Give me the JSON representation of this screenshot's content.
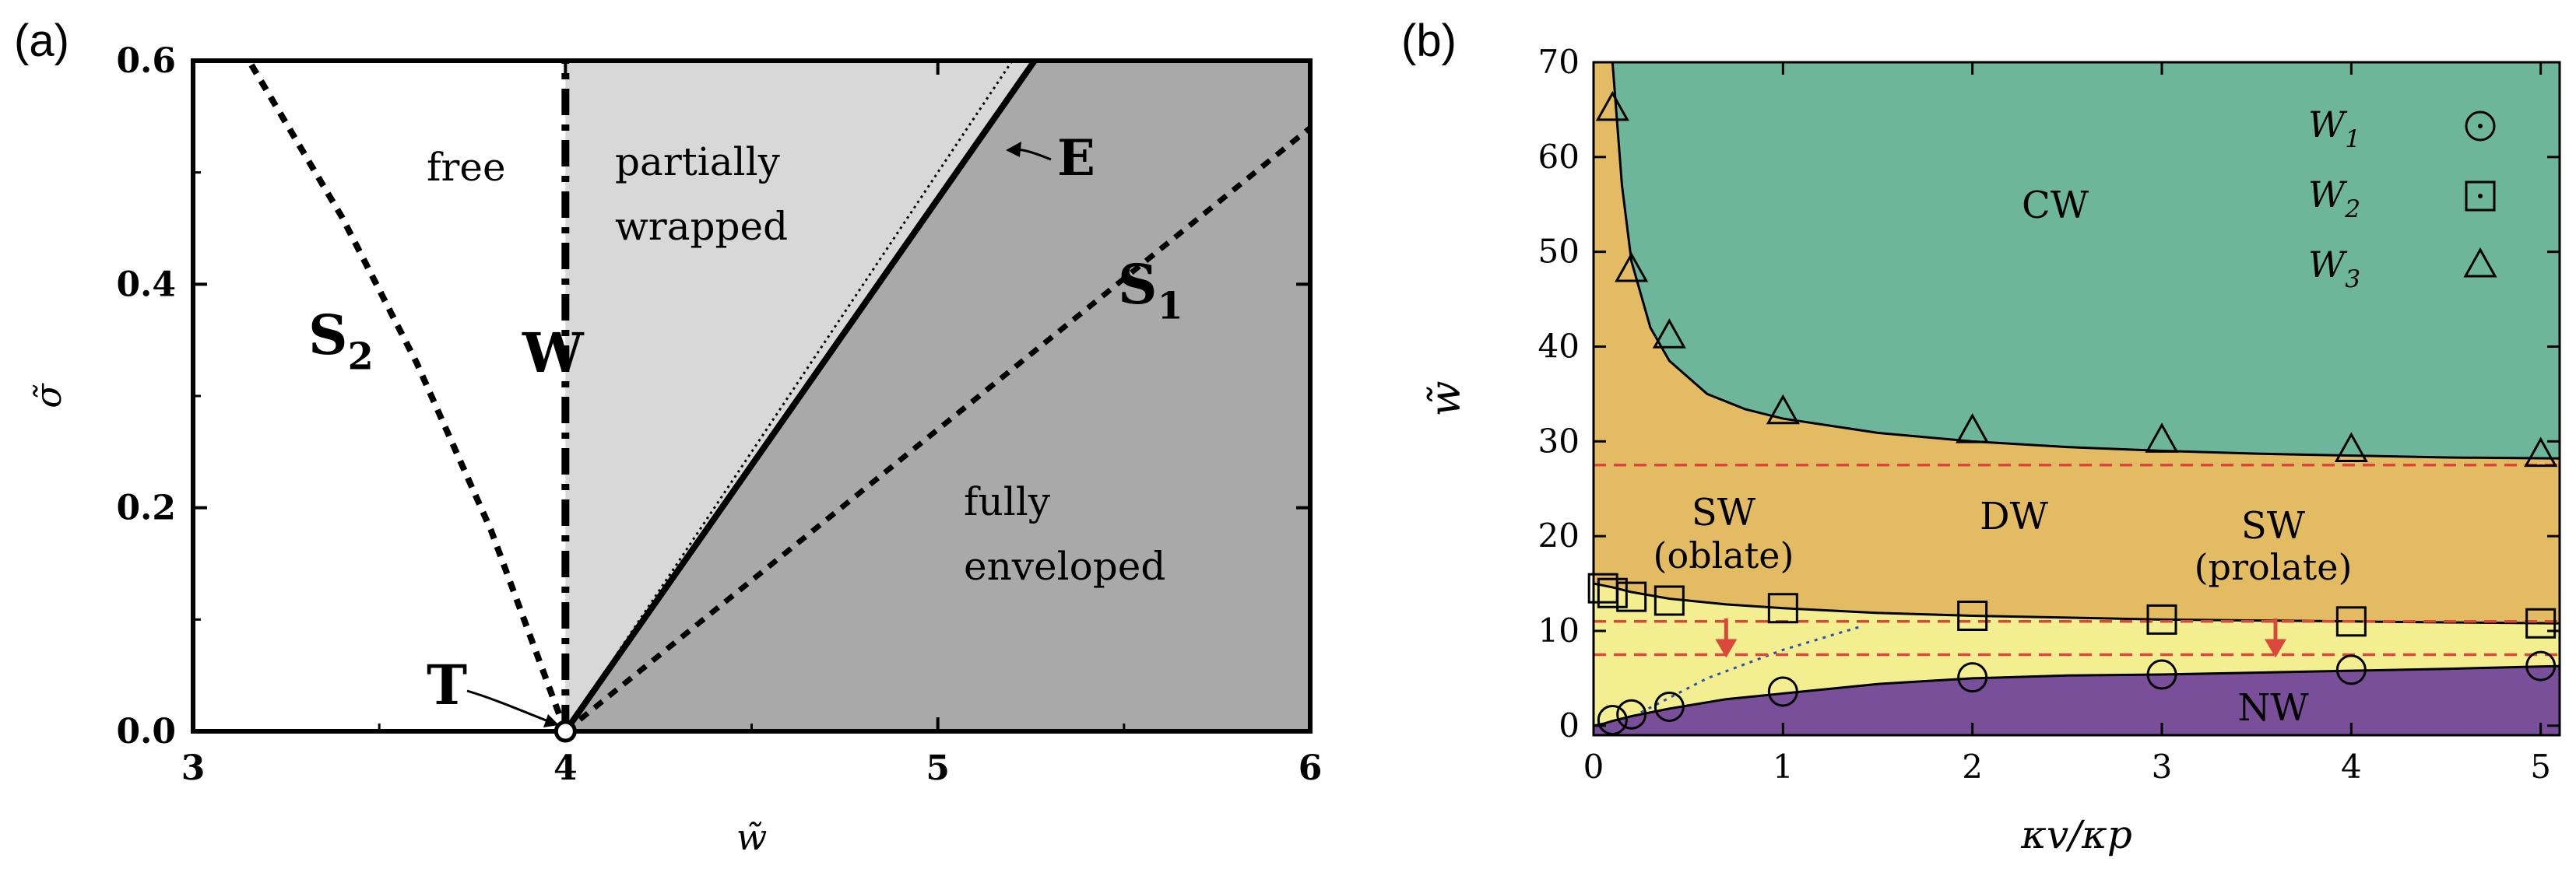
{
  "panels": {
    "a": {
      "label": "(a)"
    },
    "b": {
      "label": "(b)"
    }
  },
  "chart_data": [
    {
      "id": "a",
      "type": "area",
      "xlabel": "w̃",
      "ylabel": "σ̃",
      "xlim": [
        3,
        6
      ],
      "ylim": [
        0,
        0.6
      ],
      "xticks": [
        3,
        4,
        5,
        6
      ],
      "yticks": [
        0.0,
        0.2,
        0.4,
        0.6
      ],
      "grid": false,
      "colors": {
        "partially_wrapped": "#d8d8d8",
        "fully_enveloped": "#a9a9a9",
        "free": "#ffffff"
      },
      "regions": [
        {
          "key": "free",
          "lines": [
            "free"
          ]
        },
        {
          "key": "partially_wrapped",
          "lines": [
            "partially",
            "wrapped"
          ]
        },
        {
          "key": "fully_enveloped",
          "lines": [
            "fully",
            "enveloped"
          ]
        }
      ],
      "boundaries": {
        "W": {
          "label": "W",
          "style": "dash-dot",
          "x": [
            4,
            4
          ],
          "y": [
            0,
            0.6
          ]
        },
        "E": {
          "label": "E",
          "style": "solid",
          "x": [
            4,
            5.26
          ],
          "y": [
            0,
            0.6
          ]
        },
        "E_approx": {
          "style": "dotted",
          "x": [
            4,
            5.2
          ],
          "y": [
            0,
            0.6
          ]
        },
        "S1": {
          "label": "S",
          "sub": "1",
          "style": "dashed",
          "x": [
            4,
            6
          ],
          "y": [
            0,
            0.54
          ]
        },
        "S2": {
          "label": "S",
          "sub": "2",
          "style": "dashed",
          "x": [
            4.0,
            3.8,
            3.6,
            3.4,
            3.15
          ],
          "y": [
            0.0,
            0.18,
            0.33,
            0.46,
            0.6
          ]
        }
      },
      "point_T": {
        "label": "T",
        "x": 4,
        "y": 0
      }
    },
    {
      "id": "b",
      "type": "area",
      "xlabel": "κv/κp",
      "ylabel": "w̃",
      "xlim": [
        0,
        5.1
      ],
      "ylim": [
        -1,
        70
      ],
      "xticks": [
        0,
        1,
        2,
        3,
        4,
        5
      ],
      "yticks": [
        0,
        10,
        20,
        30,
        40,
        50,
        60,
        70
      ],
      "grid": false,
      "colors": {
        "CW": "#6db69c",
        "DW": "#e3bb63",
        "band": "#f3ef91",
        "NW": "#7a4f9a",
        "dashed": "#d9483b",
        "arrow": "#d9483b",
        "blue": "#2a4fa8"
      },
      "region_labels": {
        "CW": "CW",
        "DW": "DW",
        "NW": "NW",
        "SW": "SW",
        "oblate": "(oblate)",
        "prolate": "(prolate)"
      },
      "red_dashed_y": [
        27.5,
        11,
        7.5
      ],
      "legend": {
        "placement": "top-right",
        "entries": [
          {
            "label": "W",
            "sub": "1",
            "marker": "circle"
          },
          {
            "label": "W",
            "sub": "2",
            "marker": "square"
          },
          {
            "label": "W",
            "sub": "3",
            "marker": "triangle"
          }
        ]
      },
      "series": [
        {
          "name": "W1",
          "marker": "circle",
          "x": [
            0.1,
            0.2,
            0.4,
            1.0,
            2.0,
            3.0,
            4.0,
            5.0
          ],
          "y": [
            0.6,
            1.2,
            2.0,
            3.6,
            5.1,
            5.4,
            5.9,
            6.3
          ]
        },
        {
          "name": "W2",
          "marker": "square",
          "x": [
            0.05,
            0.1,
            0.2,
            0.4,
            1.0,
            2.0,
            3.0,
            4.0,
            5.0
          ],
          "y": [
            14.5,
            14.0,
            13.6,
            13.2,
            12.4,
            11.6,
            11.2,
            11.0,
            10.8
          ]
        },
        {
          "name": "W3",
          "marker": "triangle",
          "x": [
            0.1,
            0.2,
            0.4,
            1.0,
            2.0,
            3.0,
            4.0,
            5.0
          ],
          "y": [
            65,
            48,
            41,
            33,
            31,
            30,
            29,
            28.5
          ]
        }
      ],
      "curves": {
        "upper": {
          "x": [
            0.1,
            0.15,
            0.2,
            0.3,
            0.4,
            0.6,
            0.8,
            1.0,
            1.5,
            2.0,
            2.5,
            3.0,
            3.5,
            4.0,
            4.5,
            5.1
          ],
          "y": [
            70,
            57,
            49,
            42,
            38.5,
            35,
            33.4,
            32.4,
            30.9,
            30.0,
            29.4,
            29.0,
            28.7,
            28.5,
            28.3,
            28.2
          ]
        },
        "middle": {
          "x": [
            0,
            0.1,
            0.2,
            0.4,
            0.7,
            1.0,
            1.5,
            2.0,
            2.5,
            3.0,
            3.5,
            4.0,
            4.5,
            5.1
          ],
          "y": [
            15,
            14.6,
            14.1,
            13.4,
            12.8,
            12.4,
            11.9,
            11.6,
            11.4,
            11.2,
            11.1,
            11.0,
            10.9,
            10.8
          ]
        },
        "lower": {
          "x": [
            0,
            0.05,
            0.1,
            0.2,
            0.4,
            0.7,
            1.0,
            1.5,
            2.0,
            2.5,
            3.0,
            3.5,
            4.0,
            4.5,
            5.1
          ],
          "y": [
            0,
            0.2,
            0.5,
            1.0,
            1.8,
            2.8,
            3.4,
            4.4,
            5.0,
            5.3,
            5.4,
            5.6,
            5.8,
            6.0,
            6.3
          ]
        },
        "blue_dotted": {
          "x": [
            0.25,
            0.6,
            1.0,
            1.4
          ],
          "y": [
            1.4,
            5.0,
            8.0,
            10.4
          ]
        }
      },
      "arrows": [
        {
          "x": 0.7,
          "y0": 11,
          "y1": 7.5
        },
        {
          "x": 3.6,
          "y0": 11,
          "y1": 7.5
        }
      ]
    }
  ]
}
